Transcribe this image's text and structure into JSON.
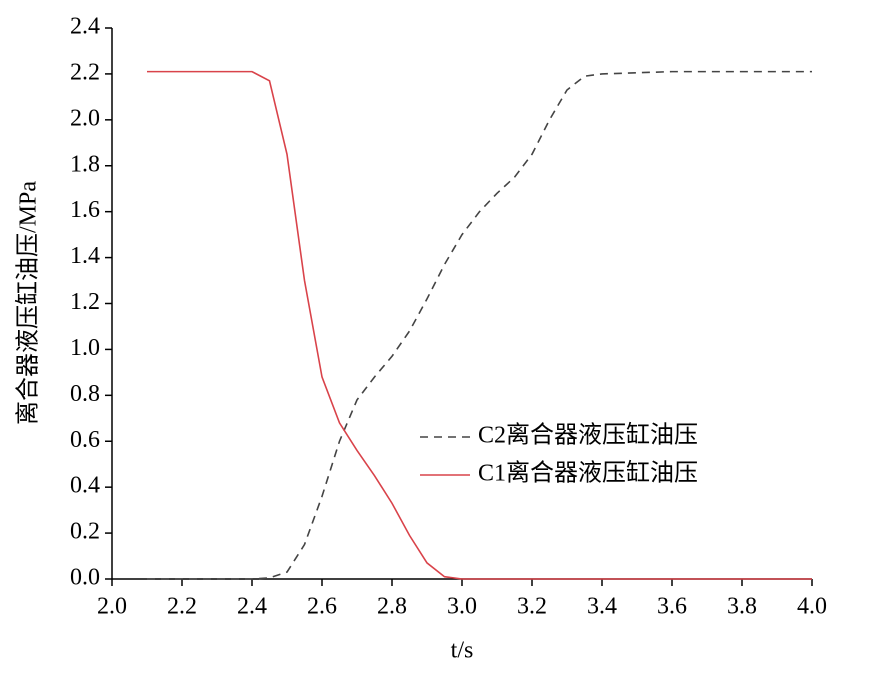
{
  "chart_data": {
    "type": "line",
    "x_label": "t/s",
    "y_label": "离合器液压缸油压/MPa",
    "x": [
      2.1,
      2.2,
      2.3,
      2.4,
      2.45,
      2.5,
      2.55,
      2.6,
      2.65,
      2.7,
      2.75,
      2.8,
      2.85,
      2.9,
      2.95,
      3.0,
      3.05,
      3.1,
      3.15,
      3.2,
      3.25,
      3.3,
      3.35,
      3.4,
      3.6,
      3.8,
      4.0
    ],
    "series": [
      {
        "name": "C2离合器液压缸油压",
        "color": "#444444",
        "dash": true,
        "values": [
          0,
          0,
          0,
          0,
          0.005,
          0.03,
          0.15,
          0.36,
          0.6,
          0.78,
          0.88,
          0.97,
          1.08,
          1.22,
          1.37,
          1.5,
          1.6,
          1.68,
          1.75,
          1.85,
          2.0,
          2.13,
          2.19,
          2.2,
          2.21,
          2.21,
          2.21
        ]
      },
      {
        "name": "C1离合器液压缸油压",
        "color": "#d9434a",
        "dash": false,
        "values": [
          2.21,
          2.21,
          2.21,
          2.21,
          2.17,
          1.85,
          1.3,
          0.88,
          0.68,
          0.56,
          0.45,
          0.33,
          0.19,
          0.07,
          0.01,
          0,
          0,
          0,
          0,
          0,
          0,
          0,
          0,
          0,
          0,
          0,
          0
        ]
      }
    ],
    "xlim": [
      2.0,
      4.0
    ],
    "xticks": [
      {
        "value": 2.0,
        "label": "2.0"
      },
      2.2,
      2.4,
      2.6,
      2.8,
      {
        "value": 3.0,
        "label": "3.0"
      },
      3.2,
      3.4,
      3.6,
      3.8,
      {
        "value": 4.0,
        "label": "4.0"
      }
    ],
    "ylim": [
      0,
      2.4
    ],
    "yticks": [
      {
        "value": 0,
        "label": "0.0"
      },
      0.2,
      0.4,
      0.6,
      0.8,
      {
        "value": 1.0,
        "label": "1.0"
      },
      1.2,
      1.4,
      1.6,
      1.8,
      {
        "value": 2.0,
        "label": "2.0"
      },
      2.2,
      2.4
    ],
    "legend": "right"
  }
}
